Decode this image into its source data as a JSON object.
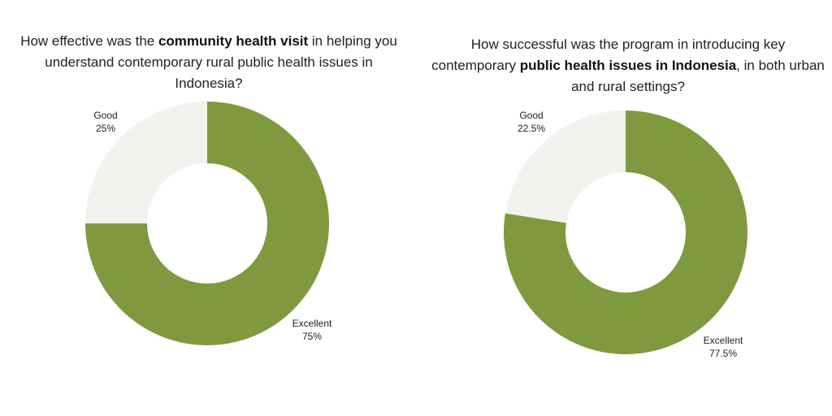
{
  "chart_data": [
    {
      "type": "pie",
      "variant": "donut",
      "title": {
        "pre": "How effective was the ",
        "bold": "community health visit",
        "post": " in helping you understand contemporary rural public health issues in Indonesia?"
      },
      "slices": [
        {
          "label": "Excellent",
          "value": 75,
          "value_label": "75%",
          "color": "#7f9a3e"
        },
        {
          "label": "Good",
          "value": 25,
          "value_label": "25%",
          "color": "#f2f2ee"
        }
      ]
    },
    {
      "type": "pie",
      "variant": "donut",
      "title": {
        "pre": "How successful was the program in introducing key contemporary ",
        "bold": "public health issues in Indonesia",
        "post": ", in both urban and rural settings?"
      },
      "slices": [
        {
          "label": "Excellent",
          "value": 77.5,
          "value_label": "77.5%",
          "color": "#7f9a3e"
        },
        {
          "label": "Good",
          "value": 22.5,
          "value_label": "22.5%",
          "color": "#f2f2ee"
        }
      ]
    }
  ]
}
